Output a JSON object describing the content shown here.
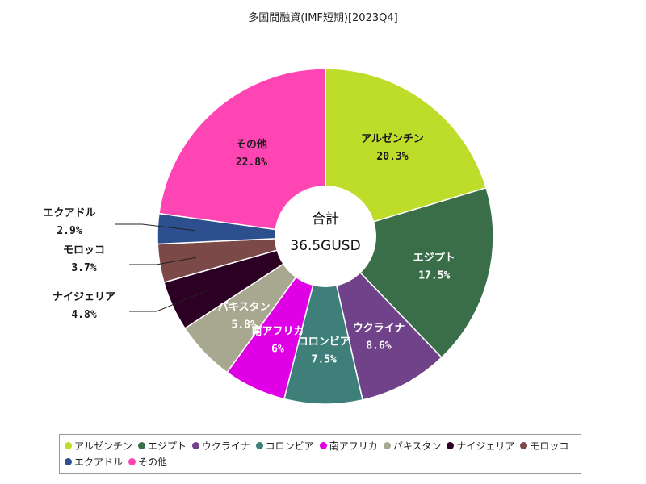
{
  "chart_data": {
    "type": "pie",
    "title": "多国間融資(IMF短期)[2023Q4]",
    "center_label": "合計",
    "center_value": "36.5GUSD",
    "legend_position": "bottom",
    "slices": [
      {
        "name": "アルゼンチン",
        "value": 20.3,
        "label": "20.3%",
        "color": "#bedd2b"
      },
      {
        "name": "エジプト",
        "value": 17.5,
        "label": "17.5%",
        "color": "#3a6e48"
      },
      {
        "name": "ウクライナ",
        "value": 8.6,
        "label": "8.6%",
        "color": "#70428a"
      },
      {
        "name": "コロンビア",
        "value": 7.5,
        "label": "7.5%",
        "color": "#3e7f7a"
      },
      {
        "name": "南アフリカ",
        "value": 6,
        "label": "6%",
        "color": "#e000e6"
      },
      {
        "name": "パキスタン",
        "value": 5.8,
        "label": "5.8%",
        "color": "#a8a891"
      },
      {
        "name": "ナイジェリア",
        "value": 4.8,
        "label": "4.8%",
        "color": "#2c0022"
      },
      {
        "name": "モロッコ",
        "value": 3.7,
        "label": "3.7%",
        "color": "#7b4a48"
      },
      {
        "name": "エクアドル",
        "value": 2.9,
        "label": "2.9%",
        "color": "#2d4f8e"
      },
      {
        "name": "その他",
        "value": 22.8,
        "label": "22.8%",
        "color": "#ff44b4"
      }
    ]
  }
}
